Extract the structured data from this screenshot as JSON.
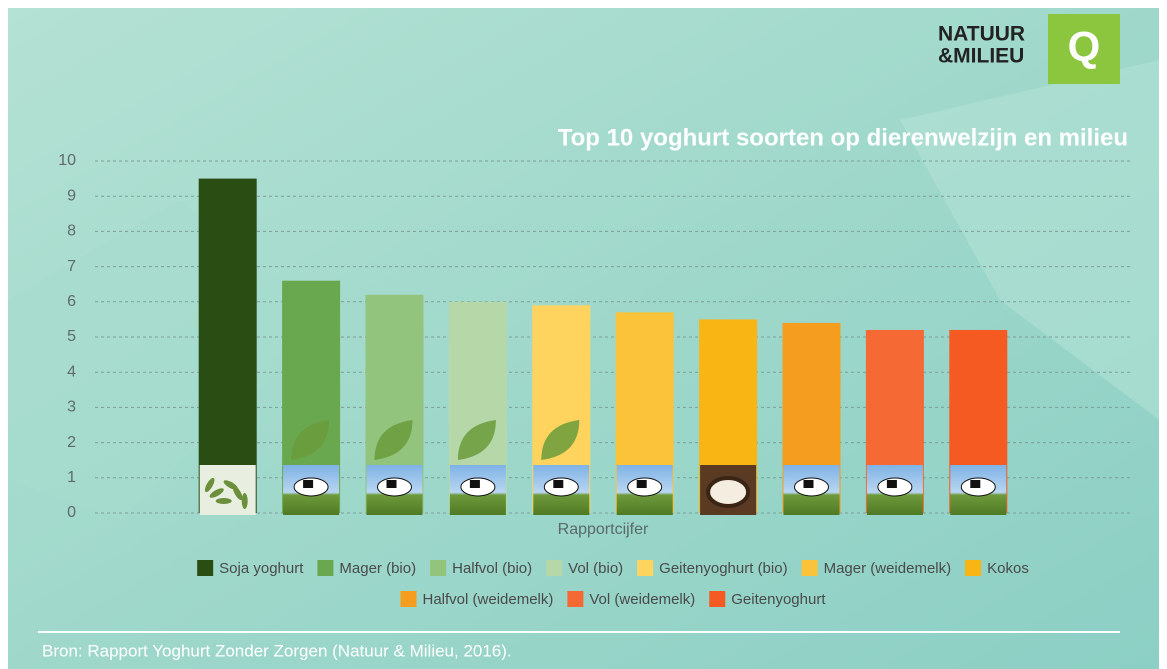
{
  "logo": {
    "line1": "NATUUR",
    "line2": "&MILIEU"
  },
  "logo_q": "Q",
  "source": "Bron: Rapport Yoghurt Zonder Zorgen (Natuur & Milieu, 2016).",
  "chart_data": {
    "type": "bar",
    "title": "Top 10 yoghurt soorten op dierenwelzijn en milieu",
    "categories": [
      "Rapportcijfer"
    ],
    "series": [
      {
        "name": "Soja yoghurt",
        "color": "#2a4d14",
        "values": [
          9.5
        ]
      },
      {
        "name": "Mager (bio)",
        "color": "#6aa84f",
        "values": [
          6.6
        ]
      },
      {
        "name": "Halfvol (bio)",
        "color": "#93c47d",
        "values": [
          6.2
        ]
      },
      {
        "name": "Vol (bio)",
        "color": "#b6d7a8",
        "values": [
          6.0
        ]
      },
      {
        "name": "Geitenyoghurt (bio)",
        "color": "#ffd45e",
        "values": [
          5.9
        ]
      },
      {
        "name": "Mager (weidemelk)",
        "color": "#fbc33a",
        "values": [
          5.7
        ]
      },
      {
        "name": "Kokos",
        "color": "#f8b514",
        "values": [
          5.5
        ]
      },
      {
        "name": "Halfvol (weidemelk)",
        "color": "#f59d1f",
        "values": [
          5.4
        ]
      },
      {
        "name": "Vol (weidemelk)",
        "color": "#f56a34",
        "values": [
          5.2
        ]
      },
      {
        "name": "Geitenyoghurt",
        "color": "#f45a22",
        "values": [
          5.2
        ]
      }
    ],
    "ylim": [
      0,
      10
    ],
    "yticks": [
      0,
      1,
      2,
      3,
      4,
      5,
      6,
      7,
      8,
      9,
      10
    ],
    "grid": true
  }
}
